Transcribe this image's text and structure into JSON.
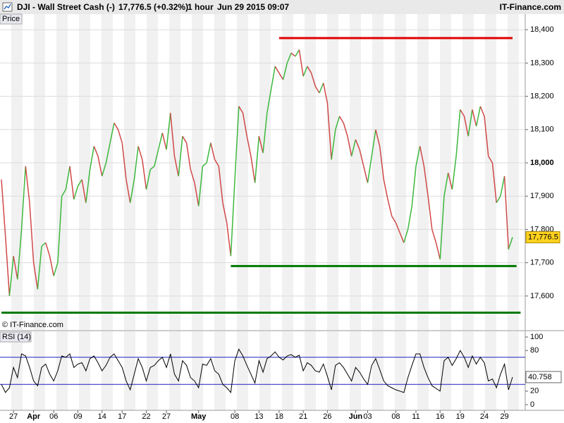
{
  "header": {
    "symbol": "DJI - Wall Street Cash (-)",
    "quote": "17,776.5 (+0.32%)",
    "interval": "1 hour",
    "datetime": "Jun 29 2015 09:07",
    "site": "IT-Finance.com"
  },
  "chart_data": [
    {
      "type": "line",
      "title": "Price",
      "copyright": "© IT-Finance.com",
      "up_color": "#3cb83c",
      "down_color": "#d04848",
      "grid": true,
      "ylim": [
        17498,
        18447
      ],
      "yticks": [
        {
          "value": 17600,
          "label": "17,600"
        },
        {
          "value": 17700,
          "label": "17,700"
        },
        {
          "value": 17800,
          "label": "17,800"
        },
        {
          "value": 17900,
          "label": "17,900"
        },
        {
          "value": 18000,
          "label": "18,000"
        },
        {
          "value": 18100,
          "label": "18,100"
        },
        {
          "value": 18200,
          "label": "18,200"
        },
        {
          "value": 18300,
          "label": "18,300"
        },
        {
          "value": 18400,
          "label": "18,400"
        }
      ],
      "last_price": {
        "value": 17776.5,
        "label": "17,776.5"
      },
      "categories": [
        null,
        null,
        null,
        "27",
        null,
        null,
        null,
        null,
        "Apr",
        null,
        null,
        null,
        null,
        "06",
        null,
        null,
        null,
        null,
        null,
        "09",
        null,
        null,
        null,
        null,
        null,
        "14",
        null,
        null,
        null,
        null,
        "17",
        null,
        null,
        null,
        null,
        null,
        "22",
        null,
        null,
        null,
        null,
        "27",
        null,
        null,
        null,
        null,
        null,
        null,
        null,
        "May",
        null,
        null,
        null,
        null,
        null,
        null,
        null,
        null,
        "08",
        null,
        null,
        null,
        null,
        null,
        "13",
        null,
        null,
        null,
        null,
        "18",
        null,
        null,
        null,
        null,
        null,
        "21",
        null,
        null,
        null,
        null,
        null,
        "26",
        null,
        null,
        null,
        null,
        null,
        null,
        "Jun",
        null,
        null,
        "03",
        null,
        null,
        null,
        null,
        null,
        null,
        "08",
        null,
        null,
        null,
        null,
        "11",
        null,
        null,
        null,
        null,
        null,
        "16",
        null,
        null,
        null,
        null,
        "19",
        null,
        null,
        null,
        null,
        null,
        "24",
        null,
        null,
        null,
        null,
        "29",
        null,
        null
      ],
      "values": [
        17950,
        17780,
        17600,
        17720,
        17650,
        17800,
        17990,
        17880,
        17700,
        17620,
        17750,
        17760,
        17720,
        17660,
        17700,
        17900,
        17920,
        17990,
        17890,
        17930,
        17950,
        17880,
        17980,
        18050,
        18020,
        17960,
        18000,
        18060,
        18120,
        18100,
        18060,
        17950,
        17880,
        17950,
        18050,
        18010,
        17920,
        17980,
        17990,
        18040,
        18090,
        18040,
        18150,
        18020,
        17960,
        18080,
        18060,
        17980,
        17940,
        17870,
        17990,
        18000,
        18060,
        18010,
        17990,
        17880,
        17820,
        17720,
        17950,
        18170,
        18150,
        18080,
        18020,
        17940,
        18080,
        18030,
        18150,
        18220,
        18290,
        18270,
        18250,
        18300,
        18330,
        18320,
        18340,
        18260,
        18290,
        18270,
        18230,
        18210,
        18240,
        18180,
        18010,
        18100,
        18140,
        18120,
        18080,
        18020,
        18070,
        18040,
        17990,
        17940,
        18020,
        18100,
        18050,
        17950,
        17890,
        17840,
        17820,
        17790,
        17760,
        17800,
        17870,
        17990,
        18050,
        17990,
        17900,
        17800,
        17760,
        17710,
        17900,
        17970,
        17920,
        18020,
        18160,
        18140,
        18080,
        18160,
        18110,
        18170,
        18140,
        18020,
        18000,
        17880,
        17900,
        17960,
        17740,
        17776.5
      ],
      "levels": [
        {
          "value": 18375,
          "color": "#e00000",
          "x": [
            69,
            127
          ]
        },
        {
          "value": 17690,
          "color": "#007a00",
          "x": [
            57,
            128
          ]
        },
        {
          "value": 17550,
          "color": "#007a00",
          "x": [
            0,
            129
          ]
        }
      ]
    },
    {
      "type": "line",
      "title": "RSI (14)",
      "color": "#000000",
      "band_color": "#2020c0",
      "ylim": [
        -8.3,
        108.3
      ],
      "yticks": [
        0,
        20,
        80,
        100
      ],
      "bands": [
        30,
        70
      ],
      "last_value": 40.758,
      "values": [
        30,
        18,
        25,
        55,
        40,
        75,
        72,
        55,
        35,
        28,
        55,
        60,
        45,
        35,
        50,
        72,
        70,
        75,
        55,
        60,
        62,
        50,
        68,
        72,
        62,
        50,
        58,
        70,
        75,
        65,
        55,
        35,
        22,
        45,
        68,
        55,
        35,
        55,
        58,
        65,
        70,
        55,
        75,
        45,
        35,
        65,
        58,
        40,
        35,
        25,
        60,
        58,
        68,
        50,
        45,
        30,
        25,
        18,
        65,
        82,
        72,
        58,
        45,
        32,
        65,
        48,
        68,
        72,
        78,
        70,
        66,
        72,
        74,
        70,
        73,
        50,
        62,
        58,
        50,
        48,
        60,
        42,
        22,
        58,
        62,
        55,
        45,
        35,
        55,
        48,
        38,
        30,
        58,
        68,
        52,
        35,
        28,
        25,
        22,
        20,
        18,
        40,
        58,
        75,
        75,
        55,
        40,
        28,
        24,
        20,
        65,
        70,
        58,
        68,
        80,
        70,
        55,
        72,
        60,
        70,
        62,
        35,
        38,
        25,
        45,
        60,
        22,
        40.758
      ]
    }
  ]
}
